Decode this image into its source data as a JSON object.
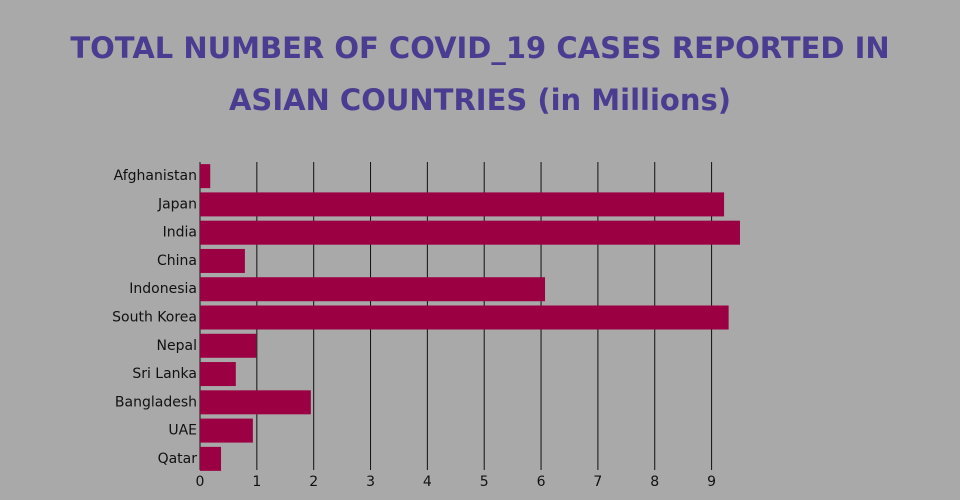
{
  "chart_data": {
    "type": "bar",
    "orientation": "horizontal",
    "title": "TOTAL NUMBER OF COVID_19 CASES REPORTED IN ASIAN COUNTRIES (in Millions)",
    "categories": [
      "Afghanistan",
      "Japan",
      "India",
      "China",
      "Indonesia",
      "South Korea",
      "Nepal",
      "Sri Lanka",
      "Bangladesh",
      "UAE",
      "Qatar"
    ],
    "values": [
      0.18,
      9.22,
      9.5,
      0.79,
      6.07,
      9.3,
      0.99,
      0.63,
      1.95,
      0.93,
      0.37
    ],
    "color": "#9b0042",
    "xlim": [
      0,
      9.5
    ],
    "xticks": [
      0,
      1,
      2,
      3,
      4,
      5,
      6,
      7,
      8,
      9
    ],
    "grid": true
  }
}
